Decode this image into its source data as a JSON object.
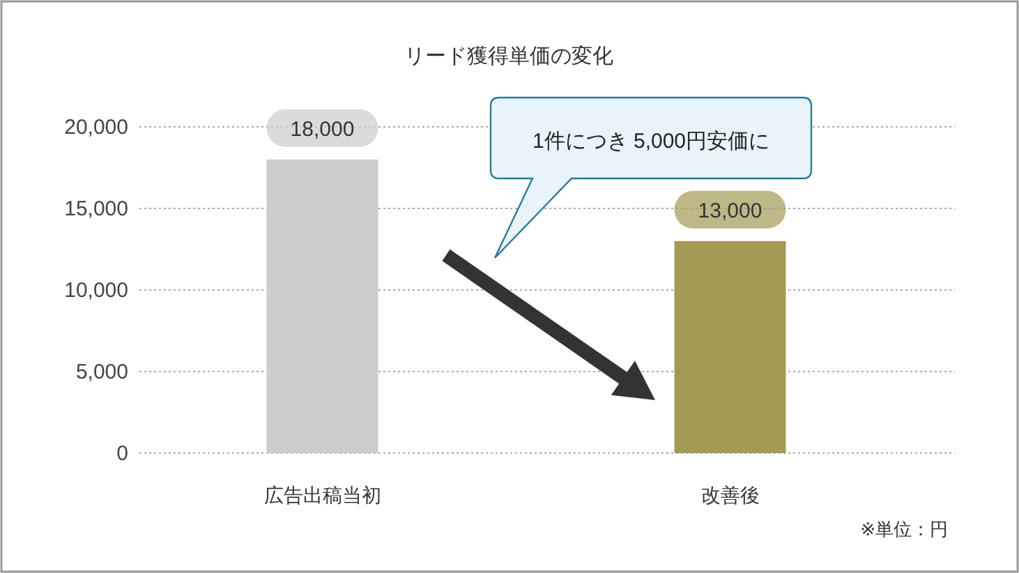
{
  "chart_data": {
    "type": "bar",
    "title": "リード獲得単価の変化",
    "categories": [
      "広告出稿当初",
      "改善後"
    ],
    "values": [
      18000,
      13000
    ],
    "colors": [
      "#cccccc",
      "#a39a56"
    ],
    "value_labels": [
      "18,000",
      "13,000"
    ],
    "ylim": [
      0,
      20000
    ],
    "yticks": [
      {
        "value": 0,
        "label": "0"
      },
      {
        "value": 5000,
        "label": "5,000"
      },
      {
        "value": 10000,
        "label": "10,000"
      },
      {
        "value": 15000,
        "label": "15,000"
      },
      {
        "value": 20000,
        "label": "20,000"
      }
    ],
    "grid": "y",
    "annotations": [
      "1件につき 5,000円安価に",
      "※単位：円"
    ]
  }
}
